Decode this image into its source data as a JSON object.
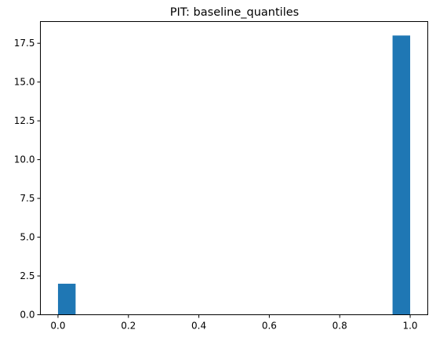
{
  "chart_data": {
    "type": "bar",
    "title": "PIT: baseline_quantiles",
    "xlabel": "",
    "ylabel": "",
    "bins": [
      {
        "x0": 0.0,
        "x1": 0.05,
        "value": 2
      },
      {
        "x0": 0.95,
        "x1": 1.0,
        "value": 18
      }
    ],
    "xlim": [
      -0.05,
      1.05
    ],
    "ylim": [
      0,
      18.9
    ],
    "xticks": [
      0.0,
      0.2,
      0.4,
      0.6,
      0.8,
      1.0
    ],
    "xtick_labels": [
      "0.0",
      "0.2",
      "0.4",
      "0.6",
      "0.8",
      "1.0"
    ],
    "yticks": [
      0,
      2.5,
      5,
      7.5,
      10,
      12.5,
      15,
      17.5
    ],
    "ytick_labels": [
      "0.0",
      "2.5",
      "5.0",
      "7.5",
      "10.0",
      "12.5",
      "15.0",
      "17.5"
    ],
    "grid": false,
    "bar_color": "#1f77b4"
  }
}
